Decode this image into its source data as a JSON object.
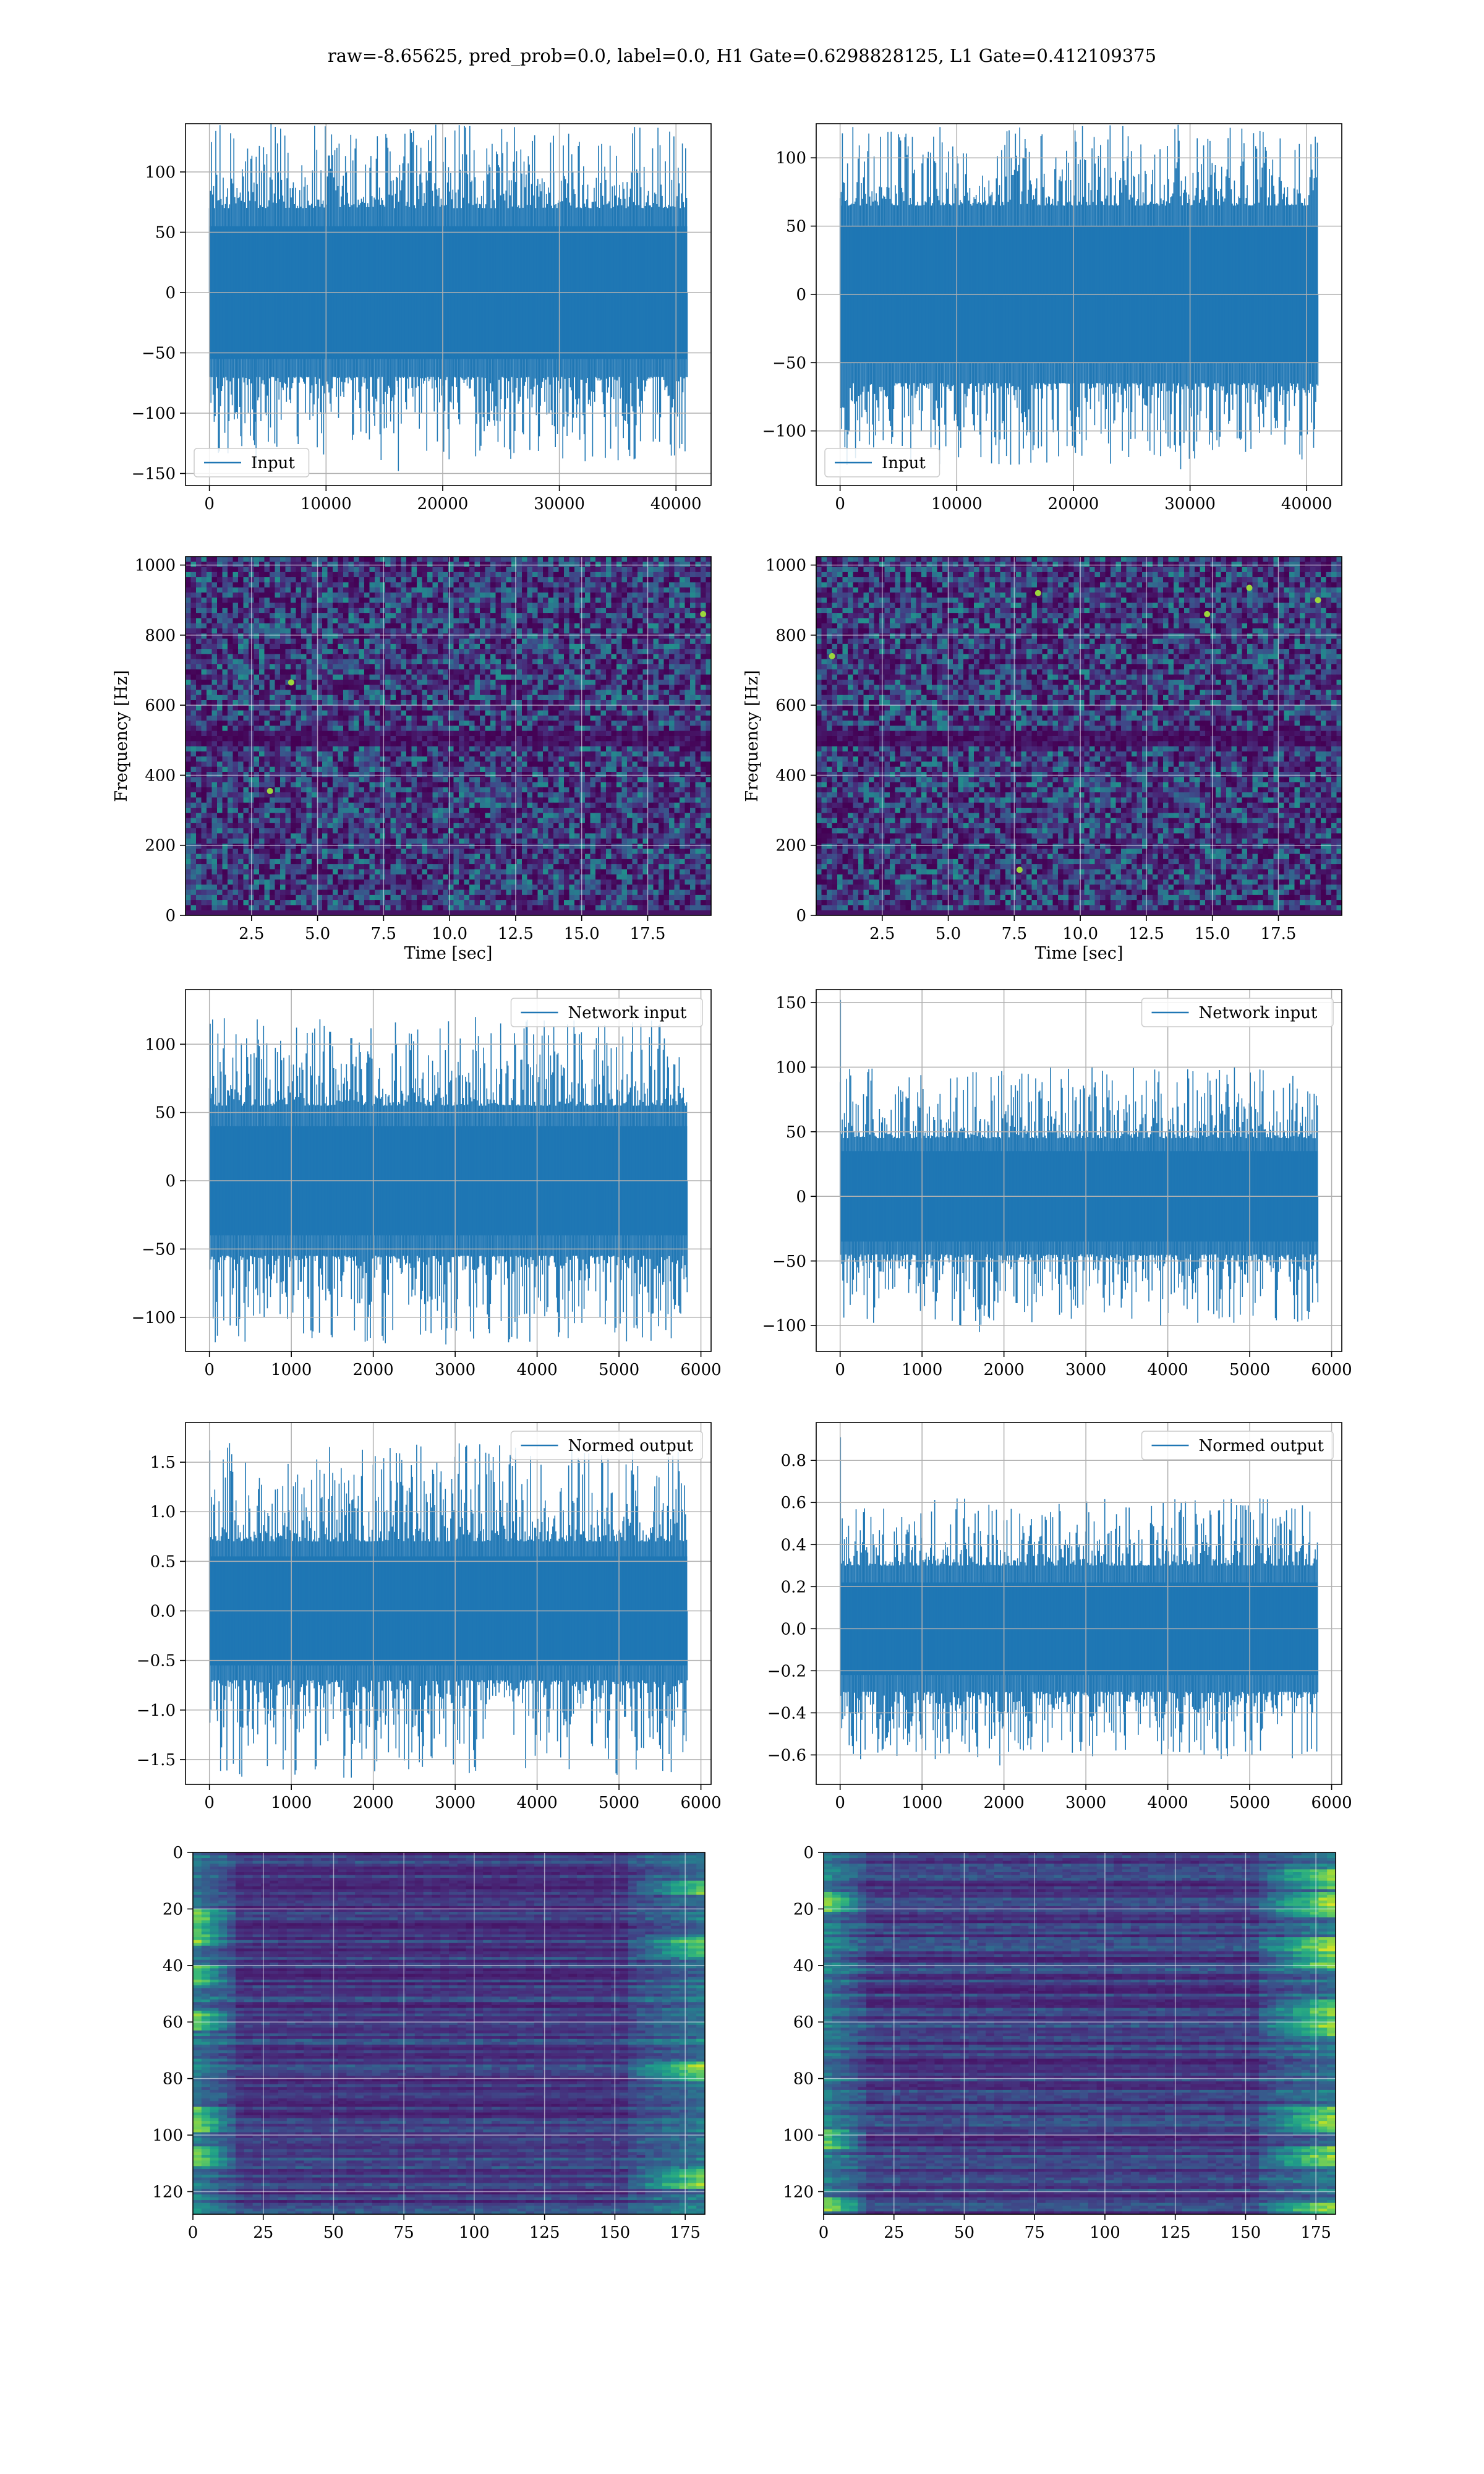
{
  "figure": {
    "suptitle": "raw=-8.65625, pred_prob=0.0, label=0.0, H1 Gate=0.6298828125, L1 Gate=0.412109375"
  },
  "colors": {
    "line": "#1f77b4",
    "grid": "#b0b0b0",
    "viridis_dark": "#440154",
    "viridis_mid": "#21918c",
    "viridis_light": "#fde725"
  },
  "chart_data": [
    {
      "id": "h1-input",
      "type": "line",
      "legend": "Input",
      "legend_loc": "lower-left",
      "xlim": [
        -2048,
        43008
      ],
      "ylim": [
        -160,
        140
      ],
      "xticks": [
        0,
        10000,
        20000,
        30000,
        40000
      ],
      "xtick_labels": [
        "0",
        "10000",
        "20000",
        "30000",
        "40000"
      ],
      "yticks": [
        -150,
        -100,
        -50,
        0,
        50,
        100
      ],
      "ytick_labels": [
        "−150",
        "−100",
        "−50",
        "0",
        "50",
        "100"
      ],
      "x_range": [
        0,
        40960
      ],
      "envelope": {
        "core": 55,
        "spike_min": 70,
        "spike_max": 140
      },
      "spikes": [
        {
          "x": 16200,
          "y": -148
        },
        {
          "x": 4000,
          "y": -142
        },
        {
          "x": 29500,
          "y": 130
        }
      ],
      "grid": true
    },
    {
      "id": "l1-input",
      "type": "line",
      "legend": "Input",
      "legend_loc": "lower-left",
      "xlim": [
        -2048,
        43008
      ],
      "ylim": [
        -140,
        125
      ],
      "xticks": [
        0,
        10000,
        20000,
        30000,
        40000
      ],
      "xtick_labels": [
        "0",
        "10000",
        "20000",
        "30000",
        "40000"
      ],
      "yticks": [
        -100,
        -50,
        0,
        50,
        100
      ],
      "ytick_labels": [
        "−100",
        "−50",
        "0",
        "50",
        "100"
      ],
      "x_range": [
        0,
        40960
      ],
      "envelope": {
        "core": 50,
        "spike_min": 65,
        "spike_max": 125
      },
      "spikes": [
        {
          "x": 200,
          "y": 118
        },
        {
          "x": 29200,
          "y": -128
        }
      ],
      "grid": true
    },
    {
      "id": "h1-spectrogram",
      "type": "heatmap",
      "cmap": "viridis",
      "xlim": [
        0,
        19.9
      ],
      "ylim": [
        0,
        1024
      ],
      "xticks": [
        2.5,
        5.0,
        7.5,
        10.0,
        12.5,
        15.0,
        17.5
      ],
      "xtick_labels": [
        "2.5",
        "5.0",
        "7.5",
        "10.0",
        "12.5",
        "15.0",
        "17.5"
      ],
      "yticks": [
        0,
        200,
        400,
        600,
        800,
        1000
      ],
      "ytick_labels": [
        "0",
        "200",
        "400",
        "600",
        "800",
        "1000"
      ],
      "xlabel": "Time [sec]",
      "ylabel": "Frequency [Hz]",
      "dark_band": [
        480,
        520
      ],
      "hot_spots": [
        {
          "x": 4.0,
          "y": 665
        },
        {
          "x": 19.6,
          "y": 860
        },
        {
          "x": 3.2,
          "y": 355
        }
      ],
      "grid": true
    },
    {
      "id": "l1-spectrogram",
      "type": "heatmap",
      "cmap": "viridis",
      "xlim": [
        0,
        19.9
      ],
      "ylim": [
        0,
        1024
      ],
      "xticks": [
        2.5,
        5.0,
        7.5,
        10.0,
        12.5,
        15.0,
        17.5
      ],
      "xtick_labels": [
        "2.5",
        "5.0",
        "7.5",
        "10.0",
        "12.5",
        "15.0",
        "17.5"
      ],
      "yticks": [
        0,
        200,
        400,
        600,
        800,
        1000
      ],
      "ytick_labels": [
        "0",
        "200",
        "400",
        "600",
        "800",
        "1000"
      ],
      "xlabel": "Time [sec]",
      "ylabel": "Frequency [Hz]",
      "dark_band": [
        480,
        520
      ],
      "hot_spots": [
        {
          "x": 8.4,
          "y": 920
        },
        {
          "x": 16.4,
          "y": 935
        },
        {
          "x": 19.0,
          "y": 900
        },
        {
          "x": 7.7,
          "y": 130
        },
        {
          "x": 0.6,
          "y": 740
        },
        {
          "x": 14.8,
          "y": 860
        }
      ],
      "grid": true
    },
    {
      "id": "h1-network-input",
      "type": "line",
      "legend": "Network input",
      "legend_loc": "upper-right",
      "xlim": [
        -292,
        6124
      ],
      "ylim": [
        -125,
        140
      ],
      "xticks": [
        0,
        1000,
        2000,
        3000,
        4000,
        5000,
        6000
      ],
      "xtick_labels": [
        "0",
        "1000",
        "2000",
        "3000",
        "4000",
        "5000",
        "6000"
      ],
      "yticks": [
        -100,
        -50,
        0,
        50,
        100
      ],
      "ytick_labels": [
        "−100",
        "−50",
        "0",
        "50",
        "100"
      ],
      "x_range": [
        0,
        5832
      ],
      "envelope": {
        "core": 40,
        "spike_min": 55,
        "spike_max": 120
      },
      "spikes": [
        {
          "x": 10,
          "y": 115
        },
        {
          "x": 3250,
          "y": 120
        },
        {
          "x": 2900,
          "y": -108
        }
      ],
      "grid": true
    },
    {
      "id": "l1-network-input",
      "type": "line",
      "legend": "Network input",
      "legend_loc": "upper-right",
      "xlim": [
        -292,
        6124
      ],
      "ylim": [
        -120,
        160
      ],
      "xticks": [
        0,
        1000,
        2000,
        3000,
        4000,
        5000,
        6000
      ],
      "xtick_labels": [
        "0",
        "1000",
        "2000",
        "3000",
        "4000",
        "5000",
        "6000"
      ],
      "yticks": [
        -100,
        -50,
        0,
        50,
        100,
        150
      ],
      "ytick_labels": [
        "−100",
        "−50",
        "0",
        "50",
        "100",
        "150"
      ],
      "x_range": [
        0,
        5832
      ],
      "envelope": {
        "core": 35,
        "spike_min": 45,
        "spike_max": 100
      },
      "spikes": [
        {
          "x": 5,
          "y": 152
        },
        {
          "x": 1700,
          "y": -105
        }
      ],
      "grid": true
    },
    {
      "id": "h1-normed-output",
      "type": "line",
      "legend": "Normed output",
      "legend_loc": "upper-right",
      "xlim": [
        -292,
        6124
      ],
      "ylim": [
        -1.75,
        1.9
      ],
      "xticks": [
        0,
        1000,
        2000,
        3000,
        4000,
        5000,
        6000
      ],
      "xtick_labels": [
        "0",
        "1000",
        "2000",
        "3000",
        "4000",
        "5000",
        "6000"
      ],
      "yticks": [
        -1.5,
        -1.0,
        -0.5,
        0.0,
        0.5,
        1.0,
        1.5
      ],
      "ytick_labels": [
        "−1.5",
        "−1.0",
        "−0.5",
        "0.0",
        "0.5",
        "1.0",
        "1.5"
      ],
      "x_range": [
        0,
        5832
      ],
      "envelope": {
        "core": 0.55,
        "spike_min": 0.7,
        "spike_max": 1.7
      },
      "spikes": [
        {
          "x": 5,
          "y": 1.62
        },
        {
          "x": 3300,
          "y": 1.68
        },
        {
          "x": 900,
          "y": -1.6
        }
      ],
      "grid": true
    },
    {
      "id": "l1-normed-output",
      "type": "line",
      "legend": "Normed output",
      "legend_loc": "upper-right",
      "xlim": [
        -292,
        6124
      ],
      "ylim": [
        -0.74,
        0.98
      ],
      "xticks": [
        0,
        1000,
        2000,
        3000,
        4000,
        5000,
        6000
      ],
      "xtick_labels": [
        "0",
        "1000",
        "2000",
        "3000",
        "4000",
        "5000",
        "6000"
      ],
      "yticks": [
        -0.6,
        -0.4,
        -0.2,
        0.0,
        0.2,
        0.4,
        0.6,
        0.8
      ],
      "ytick_labels": [
        "−0.6",
        "−0.4",
        "−0.2",
        "0.0",
        "0.2",
        "0.4",
        "0.6",
        "0.8"
      ],
      "x_range": [
        0,
        5832
      ],
      "envelope": {
        "core": 0.22,
        "spike_min": 0.3,
        "spike_max": 0.62
      },
      "spikes": [
        {
          "x": 5,
          "y": 0.91
        },
        {
          "x": 1950,
          "y": -0.65
        },
        {
          "x": 250,
          "y": -0.62
        }
      ],
      "grid": true
    },
    {
      "id": "h1-feature-map",
      "type": "heatmap",
      "cmap": "viridis",
      "inverted_y": true,
      "xlim": [
        0,
        182
      ],
      "ylim": [
        128,
        0
      ],
      "xticks": [
        0,
        25,
        50,
        75,
        100,
        125,
        150,
        175
      ],
      "xtick_labels": [
        "0",
        "25",
        "50",
        "75",
        "100",
        "125",
        "150",
        "175"
      ],
      "yticks": [
        0,
        20,
        40,
        60,
        80,
        100,
        120
      ],
      "ytick_labels": [
        "0",
        "20",
        "40",
        "60",
        "80",
        "100",
        "120"
      ],
      "edge_bright_left": [
        [
          20,
          32
        ],
        [
          40,
          46
        ],
        [
          56,
          62
        ],
        [
          90,
          98
        ],
        [
          104,
          110
        ]
      ],
      "edge_bright_right": [
        [
          10,
          14
        ],
        [
          30,
          36
        ],
        [
          74,
          80
        ],
        [
          112,
          118
        ]
      ],
      "grid": true
    },
    {
      "id": "l1-feature-map",
      "type": "heatmap",
      "cmap": "viridis",
      "inverted_y": true,
      "xlim": [
        0,
        182
      ],
      "ylim": [
        128,
        0
      ],
      "xticks": [
        0,
        25,
        50,
        75,
        100,
        125,
        150,
        175
      ],
      "xtick_labels": [
        "0",
        "25",
        "50",
        "75",
        "100",
        "125",
        "150",
        "175"
      ],
      "yticks": [
        0,
        20,
        40,
        60,
        80,
        100,
        120
      ],
      "ytick_labels": [
        "0",
        "20",
        "40",
        "60",
        "80",
        "100",
        "120"
      ],
      "edge_bright_left": [
        [
          14,
          20
        ],
        [
          98,
          104
        ],
        [
          122,
          126
        ]
      ],
      "edge_bright_right": [
        [
          6,
          12
        ],
        [
          14,
          22
        ],
        [
          30,
          40
        ],
        [
          52,
          64
        ],
        [
          90,
          98
        ],
        [
          104,
          110
        ],
        [
          124,
          127
        ]
      ],
      "grid": true
    }
  ]
}
